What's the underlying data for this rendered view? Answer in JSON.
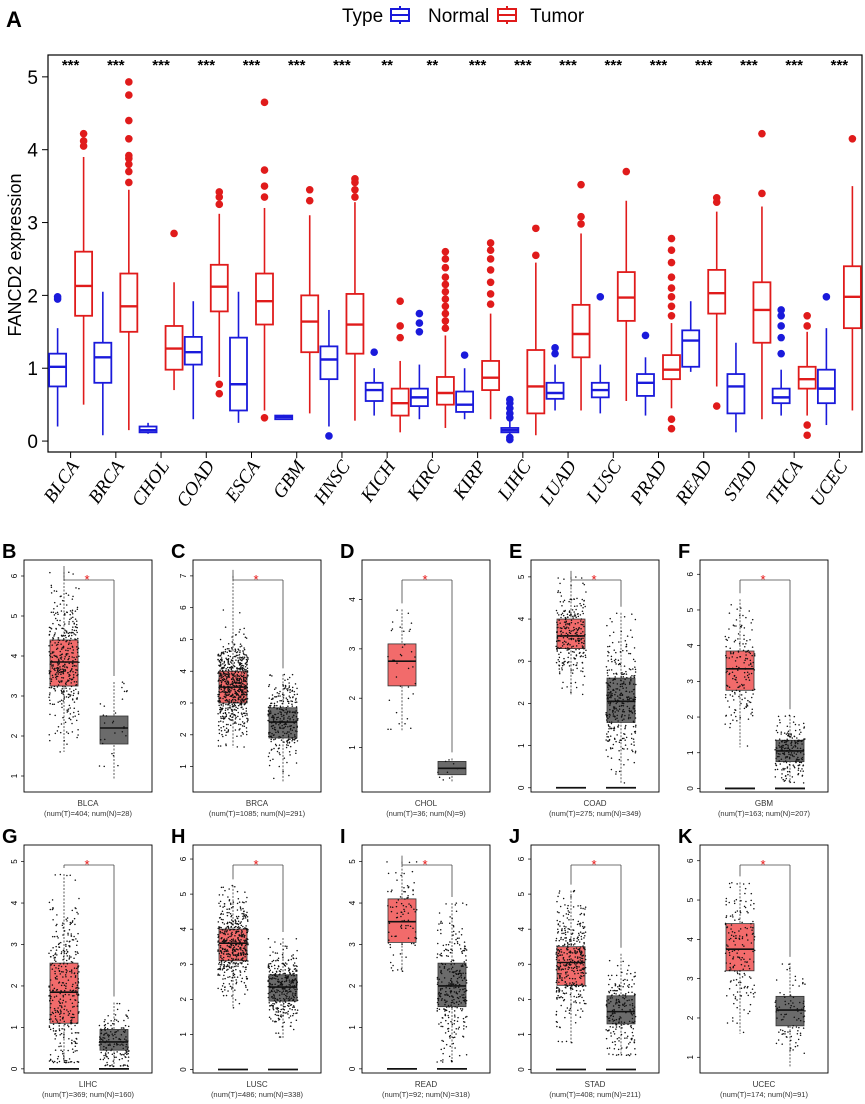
{
  "panel_a": {
    "letter": "A",
    "legend": {
      "title": "Type",
      "entries": [
        {
          "label": "Normal",
          "color": "#1a1adb"
        },
        {
          "label": "Tumor",
          "color": "#e01b1b"
        }
      ]
    },
    "ylabel": "FANCD2 expression"
  },
  "colors": {
    "normal": "#1a1adb",
    "tumor": "#e01b1b",
    "tumor_fill": "#f26b6b",
    "normal_fill": "#6b6b6b",
    "sig_red": "#e81010"
  },
  "chart_data": [
    {
      "type": "boxplot",
      "id": "A",
      "ylabel": "FANCD2 expression",
      "ylim": [
        -0.15,
        5.3
      ],
      "yticks": [
        0,
        1,
        2,
        3,
        4,
        5
      ],
      "groups": [
        "Normal",
        "Tumor"
      ],
      "categories": [
        "BLCA",
        "BRCA",
        "CHOL",
        "COAD",
        "ESCA",
        "GBM",
        "HNSC",
        "KICH",
        "KIRC",
        "KIRP",
        "LIHC",
        "LUAD",
        "LUSC",
        "PRAD",
        "READ",
        "STAD",
        "THCA",
        "UCEC"
      ],
      "significance": [
        "***",
        "***",
        "***",
        "***",
        "***",
        "***",
        "***",
        "**",
        "**",
        "***",
        "***",
        "***",
        "***",
        "***",
        "***",
        "***",
        "***",
        "***"
      ],
      "series": [
        {
          "name": "Normal",
          "boxes": [
            {
              "q1": 0.75,
              "med": 1.02,
              "q3": 1.2,
              "wlo": 0.2,
              "whi": 1.55,
              "out": [
                1.95,
                1.98
              ]
            },
            {
              "q1": 0.8,
              "med": 1.15,
              "q3": 1.35,
              "wlo": 0.08,
              "whi": 2.05,
              "out": []
            },
            {
              "q1": 0.12,
              "med": 0.15,
              "q3": 0.2,
              "wlo": 0.1,
              "whi": 0.25,
              "out": []
            },
            {
              "q1": 1.05,
              "med": 1.22,
              "q3": 1.43,
              "wlo": 0.3,
              "whi": 1.92,
              "out": []
            },
            {
              "q1": 0.42,
              "med": 0.78,
              "q3": 1.42,
              "wlo": 0.25,
              "whi": 2.05,
              "out": []
            },
            {
              "q1": 0.3,
              "med": 0.33,
              "q3": 0.35,
              "wlo": 0.29,
              "whi": 0.36,
              "out": []
            },
            {
              "q1": 0.85,
              "med": 1.12,
              "q3": 1.3,
              "wlo": 0.2,
              "whi": 1.8,
              "out": [
                0.07
              ]
            },
            {
              "q1": 0.55,
              "med": 0.7,
              "q3": 0.8,
              "wlo": 0.35,
              "whi": 1.0,
              "out": [
                1.22
              ]
            },
            {
              "q1": 0.48,
              "med": 0.6,
              "q3": 0.72,
              "wlo": 0.3,
              "whi": 1.05,
              "out": [
                1.5,
                1.62,
                1.75
              ]
            },
            {
              "q1": 0.4,
              "med": 0.5,
              "q3": 0.68,
              "wlo": 0.3,
              "whi": 1.0,
              "out": [
                1.18
              ]
            },
            {
              "q1": 0.12,
              "med": 0.15,
              "q3": 0.18,
              "wlo": 0.08,
              "whi": 0.28,
              "out": [
                0.32,
                0.38,
                0.45,
                0.52,
                0.57,
                0.05,
                0.02
              ]
            },
            {
              "q1": 0.58,
              "med": 0.66,
              "q3": 0.8,
              "wlo": 0.42,
              "whi": 1.05,
              "out": [
                1.2,
                1.28
              ]
            },
            {
              "q1": 0.6,
              "med": 0.7,
              "q3": 0.8,
              "wlo": 0.38,
              "whi": 1.05,
              "out": [
                1.98
              ]
            },
            {
              "q1": 0.62,
              "med": 0.8,
              "q3": 0.92,
              "wlo": 0.35,
              "whi": 1.15,
              "out": [
                1.45
              ]
            },
            {
              "q1": 1.02,
              "med": 1.38,
              "q3": 1.52,
              "wlo": 0.95,
              "whi": 1.92,
              "out": []
            },
            {
              "q1": 0.38,
              "med": 0.75,
              "q3": 0.92,
              "wlo": 0.12,
              "whi": 1.35,
              "out": []
            },
            {
              "q1": 0.52,
              "med": 0.6,
              "q3": 0.72,
              "wlo": 0.35,
              "whi": 0.98,
              "out": [
                1.2,
                1.42,
                1.58,
                1.72,
                1.8
              ]
            },
            {
              "q1": 0.52,
              "med": 0.72,
              "q3": 0.98,
              "wlo": 0.22,
              "whi": 1.55,
              "out": [
                1.98
              ]
            }
          ]
        },
        {
          "name": "Tumor",
          "boxes": [
            {
              "q1": 1.72,
              "med": 2.13,
              "q3": 2.6,
              "wlo": 0.5,
              "whi": 3.9,
              "out": [
                4.05,
                4.12,
                4.22
              ]
            },
            {
              "q1": 1.5,
              "med": 1.85,
              "q3": 2.3,
              "wlo": 0.15,
              "whi": 3.45,
              "out": [
                3.55,
                3.7,
                3.8,
                3.88,
                3.92,
                4.15,
                4.4,
                4.75,
                4.93
              ]
            },
            {
              "q1": 0.98,
              "med": 1.27,
              "q3": 1.58,
              "wlo": 0.7,
              "whi": 2.18,
              "out": [
                2.85
              ]
            },
            {
              "q1": 1.78,
              "med": 2.12,
              "q3": 2.42,
              "wlo": 0.88,
              "whi": 3.12,
              "out": [
                3.25,
                3.35,
                3.42,
                0.65,
                0.78
              ]
            },
            {
              "q1": 1.6,
              "med": 1.92,
              "q3": 2.3,
              "wlo": 0.42,
              "whi": 3.2,
              "out": [
                3.35,
                3.5,
                3.72,
                4.65,
                0.32
              ]
            },
            {
              "q1": 1.22,
              "med": 1.64,
              "q3": 2.0,
              "wlo": 0.38,
              "whi": 3.1,
              "out": [
                3.3,
                3.45
              ]
            },
            {
              "q1": 1.2,
              "med": 1.6,
              "q3": 2.02,
              "wlo": 0.28,
              "whi": 3.28,
              "out": [
                3.35,
                3.45,
                3.55,
                3.6
              ]
            },
            {
              "q1": 0.35,
              "med": 0.52,
              "q3": 0.72,
              "wlo": 0.12,
              "whi": 1.1,
              "out": [
                1.42,
                1.58,
                1.92
              ]
            },
            {
              "q1": 0.5,
              "med": 0.66,
              "q3": 0.88,
              "wlo": 0.18,
              "whi": 1.45,
              "out": [
                1.55,
                1.65,
                1.75,
                1.85,
                1.95,
                2.05,
                2.15,
                2.25,
                2.38,
                2.5,
                2.6
              ]
            },
            {
              "q1": 0.7,
              "med": 0.87,
              "q3": 1.1,
              "wlo": 0.3,
              "whi": 1.75,
              "out": [
                1.88,
                2.02,
                2.18,
                2.35,
                2.5,
                2.62,
                2.72
              ]
            },
            {
              "q1": 0.38,
              "med": 0.75,
              "q3": 1.25,
              "wlo": 0.08,
              "whi": 2.45,
              "out": [
                2.55,
                2.92
              ]
            },
            {
              "q1": 1.15,
              "med": 1.47,
              "q3": 1.87,
              "wlo": 0.42,
              "whi": 2.85,
              "out": [
                2.98,
                3.08,
                3.52
              ]
            },
            {
              "q1": 1.65,
              "med": 1.97,
              "q3": 2.32,
              "wlo": 0.55,
              "whi": 3.3,
              "out": [
                3.7
              ]
            },
            {
              "q1": 0.85,
              "med": 0.98,
              "q3": 1.18,
              "wlo": 0.45,
              "whi": 1.62,
              "out": [
                1.72,
                1.85,
                1.98,
                2.1,
                2.25,
                2.45,
                2.62,
                2.78,
                0.3,
                0.17
              ]
            },
            {
              "q1": 1.75,
              "med": 2.03,
              "q3": 2.35,
              "wlo": 0.75,
              "whi": 3.15,
              "out": [
                3.28,
                3.34,
                0.48
              ]
            },
            {
              "q1": 1.35,
              "med": 1.8,
              "q3": 2.18,
              "wlo": 0.3,
              "whi": 3.22,
              "out": [
                3.4,
                4.22
              ]
            },
            {
              "q1": 0.72,
              "med": 0.85,
              "q3": 1.02,
              "wlo": 0.35,
              "whi": 1.5,
              "out": [
                1.58,
                1.72,
                0.22,
                0.08
              ]
            },
            {
              "q1": 1.55,
              "med": 1.98,
              "q3": 2.4,
              "wlo": 0.42,
              "whi": 3.5,
              "out": [
                4.15
              ]
            }
          ]
        }
      ]
    },
    {
      "type": "boxplot-dots",
      "id": "B",
      "cancer": "BLCA",
      "caption": "(num(T)=404; num(N)=28)",
      "sig": "*",
      "ylim": [
        0.6,
        6.4
      ],
      "yticks": [
        1,
        2,
        3,
        4,
        5,
        6
      ],
      "n_tumor": 404,
      "n_normal": 28,
      "tumor": {
        "q1": 3.25,
        "med": 3.85,
        "q3": 4.4,
        "wlo": 1.6,
        "whi": 6.1
      },
      "normal": {
        "q1": 1.8,
        "med": 2.2,
        "q3": 2.5,
        "wlo": 0.9,
        "whi": 3.35
      }
    },
    {
      "type": "boxplot-dots",
      "id": "C",
      "cancer": "BRCA",
      "caption": "(num(T)=1085; num(N)=291)",
      "sig": "*",
      "ylim": [
        0.2,
        7.5
      ],
      "yticks": [
        1,
        2,
        3,
        4,
        5,
        6,
        7
      ],
      "n_tumor": 1085,
      "n_normal": 291,
      "tumor": {
        "q1": 3.0,
        "med": 3.5,
        "q3": 4.0,
        "wlo": 1.6,
        "whi": 7.0
      },
      "normal": {
        "q1": 1.9,
        "med": 2.4,
        "q3": 2.85,
        "wlo": 0.5,
        "whi": 3.9
      }
    },
    {
      "type": "boxplot-dots",
      "id": "D",
      "cancer": "CHOL",
      "caption": "(num(T)=36; num(N)=9)",
      "sig": "*",
      "ylim": [
        0.1,
        4.8
      ],
      "yticks": [
        1,
        2,
        3,
        4
      ],
      "n_tumor": 36,
      "n_normal": 9,
      "tumor": {
        "q1": 2.25,
        "med": 2.75,
        "q3": 3.1,
        "wlo": 1.35,
        "whi": 3.8
      },
      "normal": {
        "q1": 0.45,
        "med": 0.58,
        "q3": 0.72,
        "wlo": 0.3,
        "whi": 0.78
      }
    },
    {
      "type": "boxplot-dots",
      "id": "E",
      "cancer": "COAD",
      "caption": "(num(T)=275; num(N)=349)",
      "sig": "*",
      "ylim": [
        -0.1,
        5.4
      ],
      "yticks": [
        0,
        1,
        2,
        3,
        4,
        5
      ],
      "n_tumor": 275,
      "n_normal": 349,
      "tumor": {
        "q1": 3.3,
        "med": 3.6,
        "q3": 4.0,
        "wlo": 2.2,
        "whi": 5.0
      },
      "normal": {
        "q1": 1.55,
        "med": 2.05,
        "q3": 2.6,
        "wlo": 0.1,
        "whi": 4.15
      }
    },
    {
      "type": "boxplot-dots",
      "id": "F",
      "cancer": "GBM",
      "caption": "(num(T)=163; num(N)=207)",
      "sig": "*",
      "ylim": [
        -0.1,
        6.4
      ],
      "yticks": [
        0,
        1,
        2,
        3,
        4,
        5,
        6
      ],
      "n_tumor": 163,
      "n_normal": 207,
      "tumor": {
        "q1": 2.75,
        "med": 3.35,
        "q3": 3.85,
        "wlo": 1.15,
        "whi": 5.3
      },
      "normal": {
        "q1": 0.75,
        "med": 1.05,
        "q3": 1.35,
        "wlo": 0.15,
        "whi": 2.05
      }
    },
    {
      "type": "boxplot-dots",
      "id": "G",
      "cancer": "LIHC",
      "caption": "(num(T)=369; num(N)=160)",
      "sig": "*",
      "ylim": [
        -0.1,
        5.4
      ],
      "yticks": [
        0,
        1,
        2,
        3,
        4,
        5
      ],
      "n_tumor": 369,
      "n_normal": 160,
      "tumor": {
        "q1": 1.1,
        "med": 1.85,
        "q3": 2.55,
        "wlo": 0.15,
        "whi": 4.7
      },
      "normal": {
        "q1": 0.45,
        "med": 0.65,
        "q3": 0.95,
        "wlo": 0.05,
        "whi": 1.6
      }
    },
    {
      "type": "boxplot-dots",
      "id": "H",
      "cancer": "LUSC",
      "caption": "(num(T)=486; num(N)=338)",
      "sig": "*",
      "ylim": [
        -0.1,
        6.4
      ],
      "yticks": [
        0,
        1,
        2,
        3,
        4,
        5,
        6
      ],
      "n_tumor": 486,
      "n_normal": 338,
      "tumor": {
        "q1": 3.1,
        "med": 3.6,
        "q3": 4.0,
        "wlo": 1.75,
        "whi": 5.25
      },
      "normal": {
        "q1": 1.95,
        "med": 2.35,
        "q3": 2.7,
        "wlo": 0.9,
        "whi": 3.75
      }
    },
    {
      "type": "boxplot-dots",
      "id": "I",
      "cancer": "READ",
      "caption": "(num(T)=92; num(N)=318)",
      "sig": "*",
      "ylim": [
        -0.1,
        5.4
      ],
      "yticks": [
        0,
        1,
        2,
        3,
        4,
        5
      ],
      "n_tumor": 92,
      "n_normal": 318,
      "tumor": {
        "q1": 3.05,
        "med": 3.55,
        "q3": 4.1,
        "wlo": 2.35,
        "whi": 5.0
      },
      "normal": {
        "q1": 1.5,
        "med": 2.0,
        "q3": 2.55,
        "wlo": 0.15,
        "whi": 4.0
      }
    },
    {
      "type": "boxplot-dots",
      "id": "J",
      "cancer": "STAD",
      "caption": "(num(T)=408; num(N)=211)",
      "sig": "*",
      "ylim": [
        -0.1,
        6.4
      ],
      "yticks": [
        0,
        1,
        2,
        3,
        4,
        5,
        6
      ],
      "n_tumor": 408,
      "n_normal": 211,
      "tumor": {
        "q1": 2.4,
        "med": 3.05,
        "q3": 3.5,
        "wlo": 0.75,
        "whi": 5.1
      },
      "normal": {
        "q1": 1.3,
        "med": 1.65,
        "q3": 2.1,
        "wlo": 0.4,
        "whi": 3.3
      }
    },
    {
      "type": "boxplot-dots",
      "id": "K",
      "cancer": "UCEC",
      "caption": "(num(T)=174; num(N)=91)",
      "sig": "*",
      "ylim": [
        0.6,
        6.4
      ],
      "yticks": [
        1,
        2,
        3,
        4,
        5,
        6
      ],
      "n_tumor": 174,
      "n_normal": 91,
      "tumor": {
        "q1": 3.2,
        "med": 3.75,
        "q3": 4.4,
        "wlo": 1.6,
        "whi": 5.45
      },
      "normal": {
        "q1": 1.8,
        "med": 2.2,
        "q3": 2.55,
        "wlo": 0.75,
        "whi": 3.4
      }
    }
  ]
}
